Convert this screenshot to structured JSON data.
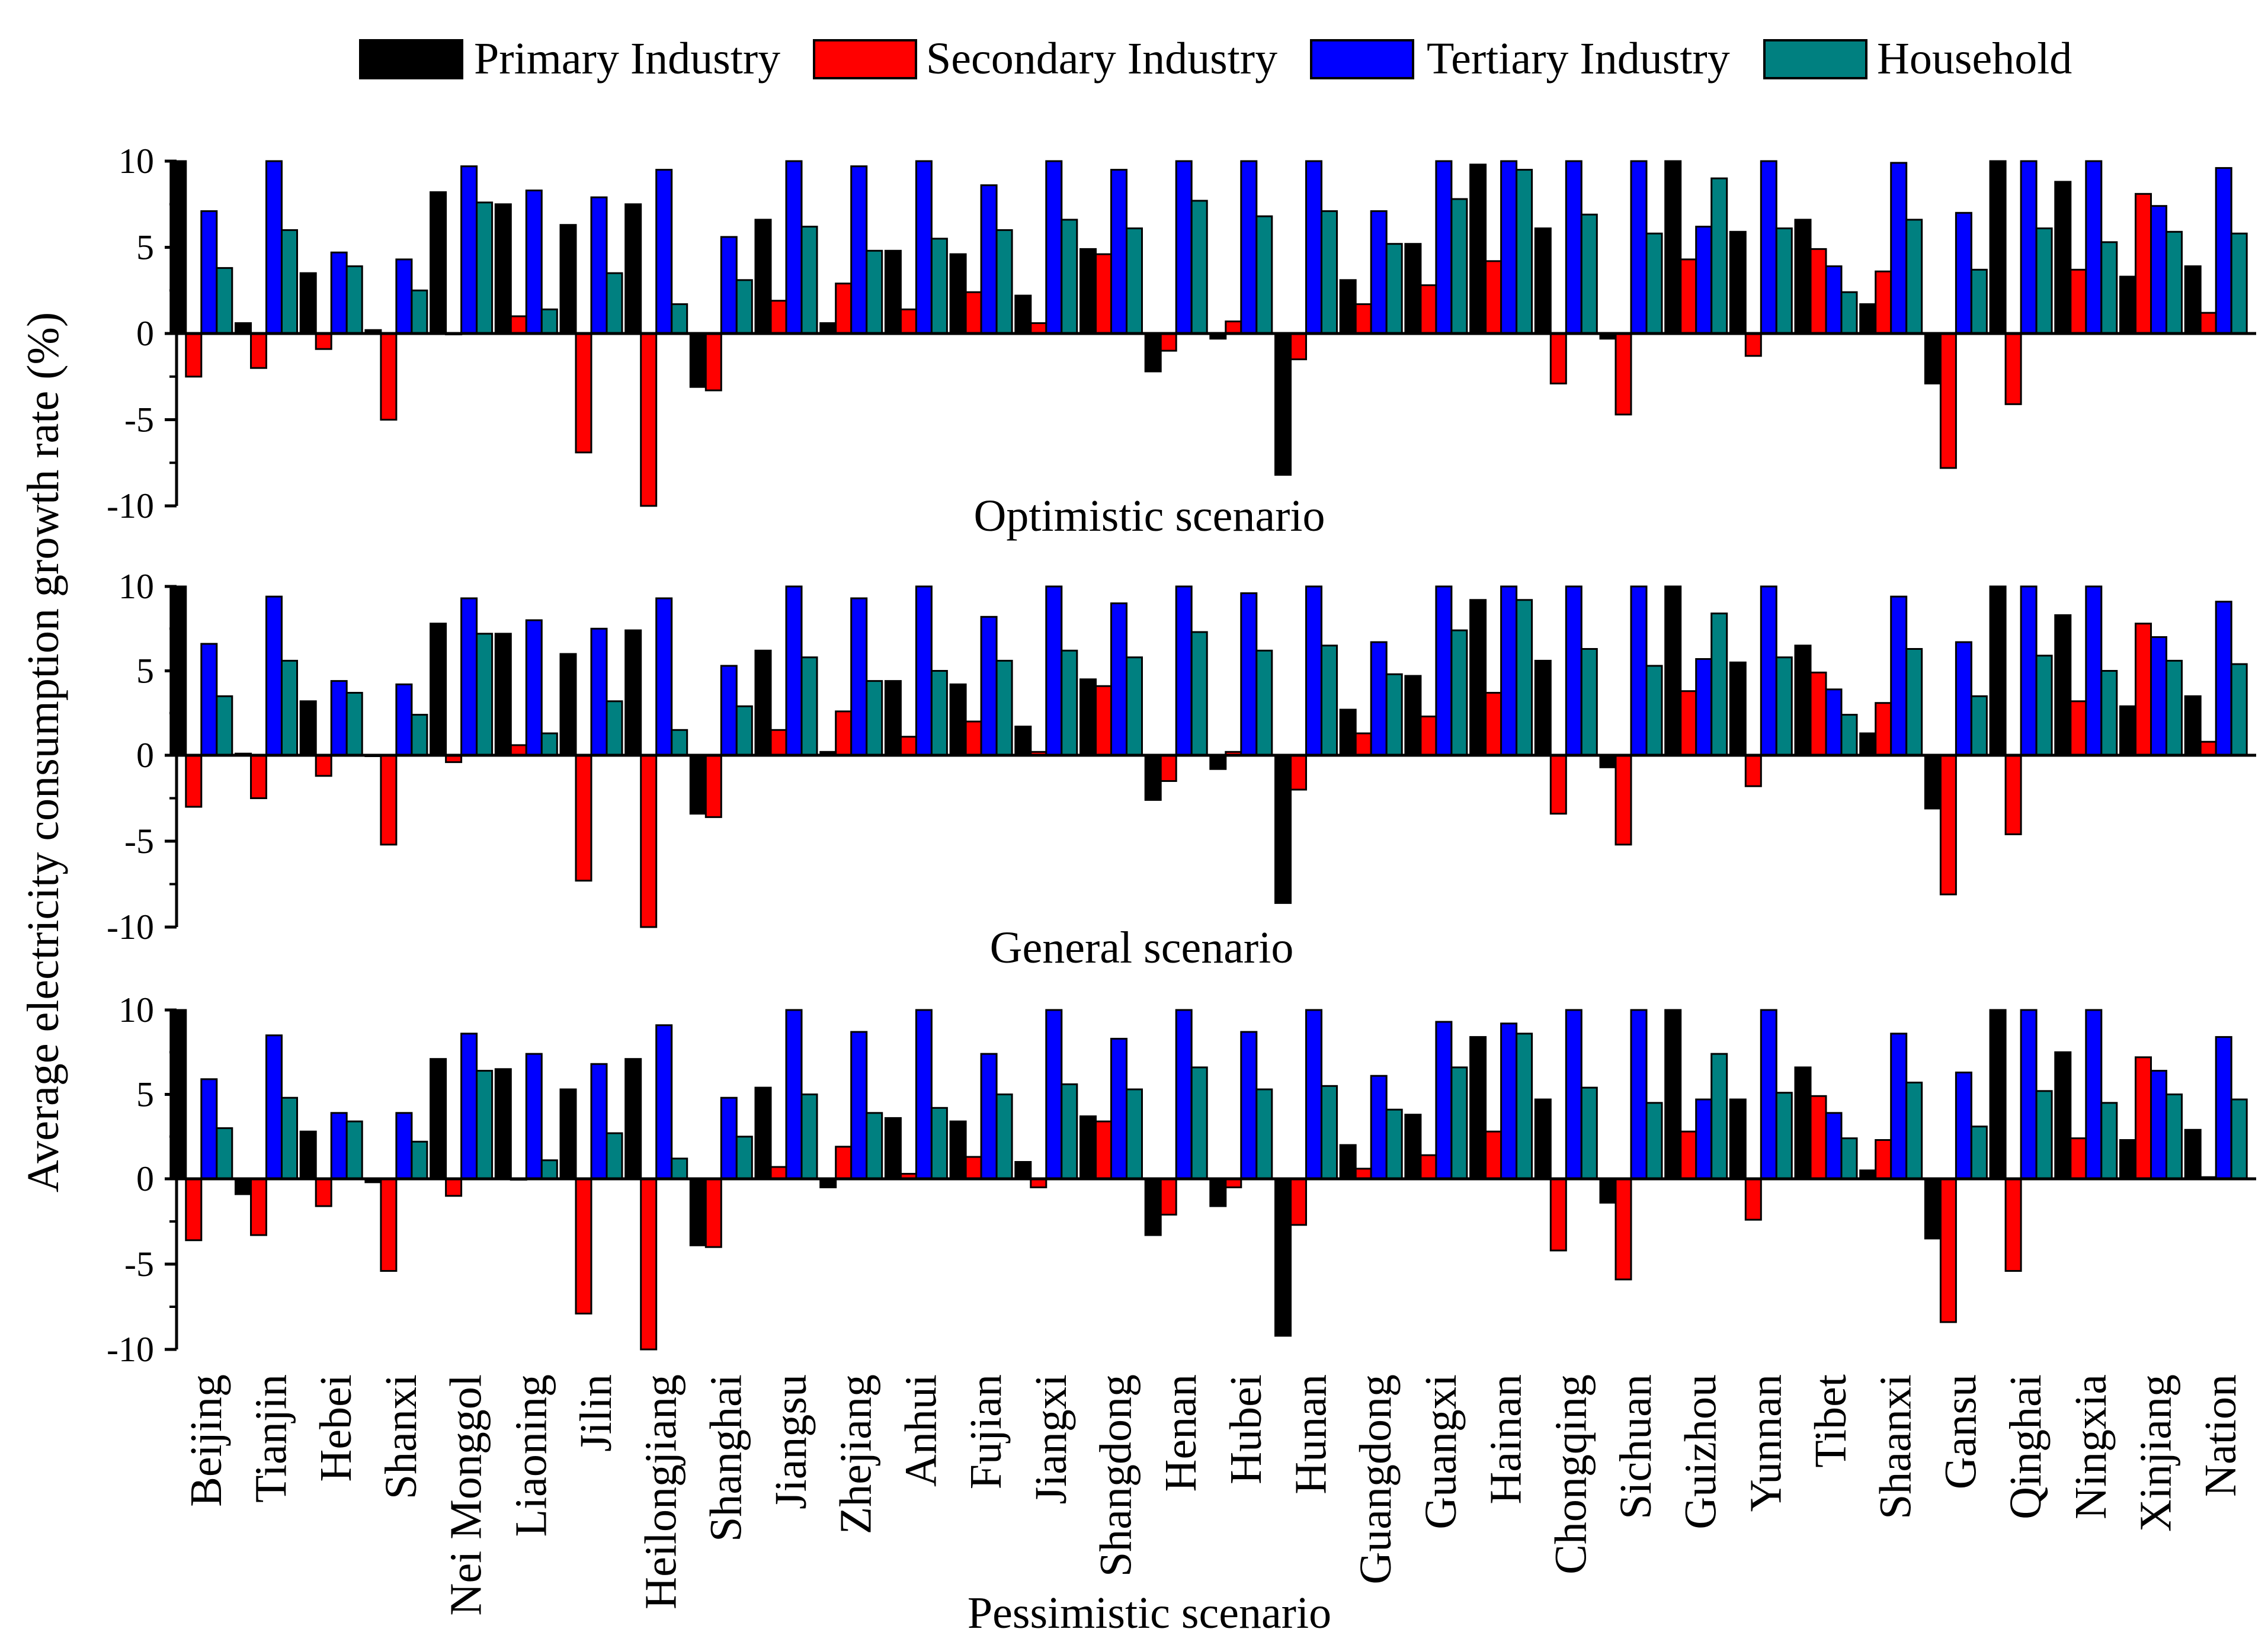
{
  "chart_data": {
    "type": "bar",
    "ylabel": "Average electricity consumption growth rate (%)",
    "ylim": [
      -10,
      10
    ],
    "yticks": [
      10,
      5,
      0,
      -5,
      -10
    ],
    "legend_position": "top",
    "categories": [
      "Beijing",
      "Tianjin",
      "Hebei",
      "Shanxi",
      "Nei Monggol",
      "Liaoning",
      "Jilin",
      "Heilongjiang",
      "Shanghai",
      "Jiangsu",
      "Zhejiang",
      "Anhui",
      "Fujian",
      "Jiangxi",
      "Shangdong",
      "Henan",
      "Hubei",
      "Hunan",
      "Guangdong",
      "Guangxi",
      "Hainan",
      "Chongqing",
      "Sichuan",
      "Guizhou",
      "Yunnan",
      "Tibet",
      "Shaanxi",
      "Gansu",
      "Qinghai",
      "Ningxia",
      "Xinjiang",
      "Nation"
    ],
    "series": [
      {
        "name": "Primary Industry",
        "color": "#000000"
      },
      {
        "name": "Secondary Industry",
        "color": "#ff0000"
      },
      {
        "name": "Tertiary Industry",
        "color": "#0000ff"
      },
      {
        "name": "Household",
        "color": "#008080"
      }
    ],
    "panels": [
      {
        "title": "Optimistic scenario",
        "values": [
          [
            10.5,
            -2.5,
            7.1,
            3.8
          ],
          [
            0.6,
            -2.0,
            10.0,
            6.0
          ],
          [
            3.5,
            -0.9,
            4.7,
            3.9
          ],
          [
            0.2,
            -5.0,
            4.3,
            2.5
          ],
          [
            8.2,
            0.0,
            9.7,
            7.6
          ],
          [
            7.5,
            1.0,
            8.3,
            1.4
          ],
          [
            6.3,
            -6.9,
            7.9,
            3.5
          ],
          [
            7.5,
            -10.5,
            9.5,
            1.7
          ],
          [
            -3.1,
            -3.3,
            5.6,
            3.1
          ],
          [
            6.6,
            1.9,
            10.5,
            6.2
          ],
          [
            0.6,
            2.9,
            9.7,
            4.8
          ],
          [
            4.8,
            1.4,
            10.5,
            5.5
          ],
          [
            4.6,
            2.4,
            8.6,
            6.0
          ],
          [
            2.2,
            0.6,
            10.5,
            6.6
          ],
          [
            4.9,
            4.6,
            9.5,
            6.1
          ],
          [
            -2.2,
            -1.0,
            10.5,
            7.7
          ],
          [
            -0.3,
            0.7,
            10.1,
            6.8
          ],
          [
            -8.2,
            -1.5,
            10.5,
            7.1
          ],
          [
            3.1,
            1.7,
            7.1,
            5.2
          ],
          [
            5.2,
            2.8,
            10.5,
            7.8
          ],
          [
            9.8,
            4.2,
            10.5,
            9.5
          ],
          [
            6.1,
            -2.9,
            10.5,
            6.9
          ],
          [
            -0.3,
            -4.7,
            10.5,
            5.8
          ],
          [
            10.5,
            4.3,
            6.2,
            9.0
          ],
          [
            5.9,
            -1.3,
            10.5,
            6.1
          ],
          [
            6.6,
            4.9,
            3.9,
            2.4
          ],
          [
            1.7,
            3.6,
            9.9,
            6.6
          ],
          [
            -2.9,
            -7.8,
            7.0,
            3.7
          ],
          [
            10.5,
            -4.1,
            10.5,
            6.1
          ],
          [
            8.8,
            3.7,
            10.5,
            5.3
          ],
          [
            3.3,
            8.1,
            7.4,
            5.9
          ],
          [
            3.9,
            1.2,
            9.6,
            5.8
          ]
        ]
      },
      {
        "title": "General scenario",
        "values": [
          [
            10.0,
            -3.0,
            6.6,
            3.5
          ],
          [
            0.1,
            -2.5,
            9.4,
            5.6
          ],
          [
            3.2,
            -1.2,
            4.4,
            3.7
          ],
          [
            0.0,
            -5.2,
            4.2,
            2.4
          ],
          [
            7.8,
            -0.4,
            9.3,
            7.2
          ],
          [
            7.2,
            0.6,
            8.0,
            1.3
          ],
          [
            6.0,
            -7.3,
            7.5,
            3.2
          ],
          [
            7.4,
            -10.5,
            9.3,
            1.5
          ],
          [
            -3.4,
            -3.6,
            5.3,
            2.9
          ],
          [
            6.2,
            1.5,
            10.0,
            5.8
          ],
          [
            0.2,
            2.6,
            9.3,
            4.4
          ],
          [
            4.4,
            1.1,
            10.0,
            5.0
          ],
          [
            4.2,
            2.0,
            8.2,
            5.6
          ],
          [
            1.7,
            0.2,
            10.0,
            6.2
          ],
          [
            4.5,
            4.1,
            9.0,
            5.8
          ],
          [
            -2.6,
            -1.5,
            10.0,
            7.3
          ],
          [
            -0.8,
            0.2,
            9.6,
            6.2
          ],
          [
            -8.6,
            -2.0,
            10.0,
            6.5
          ],
          [
            2.7,
            1.3,
            6.7,
            4.8
          ],
          [
            4.7,
            2.3,
            10.0,
            7.4
          ],
          [
            9.2,
            3.7,
            10.0,
            9.2
          ],
          [
            5.6,
            -3.4,
            10.0,
            6.3
          ],
          [
            -0.7,
            -5.2,
            10.0,
            5.3
          ],
          [
            10.0,
            3.8,
            5.7,
            8.4
          ],
          [
            5.5,
            -1.8,
            10.0,
            5.8
          ],
          [
            6.5,
            4.9,
            3.9,
            2.4
          ],
          [
            1.3,
            3.1,
            9.4,
            6.3
          ],
          [
            -3.1,
            -8.1,
            6.7,
            3.5
          ],
          [
            10.0,
            -4.6,
            10.0,
            5.9
          ],
          [
            8.3,
            3.2,
            10.0,
            5.0
          ],
          [
            2.9,
            7.8,
            7.0,
            5.6
          ],
          [
            3.5,
            0.8,
            9.1,
            5.4
          ]
        ]
      },
      {
        "title": "Pessimistic scenario",
        "values": [
          [
            10.0,
            -3.6,
            5.9,
            3.0
          ],
          [
            -0.9,
            -3.3,
            8.5,
            4.8
          ],
          [
            2.8,
            -1.6,
            3.9,
            3.4
          ],
          [
            -0.2,
            -5.4,
            3.9,
            2.2
          ],
          [
            7.1,
            -1.0,
            8.6,
            6.4
          ],
          [
            6.5,
            0.0,
            7.4,
            1.1
          ],
          [
            5.3,
            -7.9,
            6.8,
            2.7
          ],
          [
            7.1,
            -10.8,
            9.1,
            1.2
          ],
          [
            -3.9,
            -4.0,
            4.8,
            2.5
          ],
          [
            5.4,
            0.7,
            10.0,
            5.0
          ],
          [
            -0.5,
            1.9,
            8.7,
            3.9
          ],
          [
            3.6,
            0.3,
            10.0,
            4.2
          ],
          [
            3.4,
            1.3,
            7.4,
            5.0
          ],
          [
            1.0,
            -0.5,
            10.0,
            5.6
          ],
          [
            3.7,
            3.4,
            8.3,
            5.3
          ],
          [
            -3.3,
            -2.1,
            10.0,
            6.6
          ],
          [
            -1.6,
            -0.5,
            8.7,
            5.3
          ],
          [
            -9.2,
            -2.7,
            10.0,
            5.5
          ],
          [
            2.0,
            0.6,
            6.1,
            4.1
          ],
          [
            3.8,
            1.4,
            9.3,
            6.6
          ],
          [
            8.4,
            2.8,
            9.2,
            8.6
          ],
          [
            4.7,
            -4.2,
            10.0,
            5.4
          ],
          [
            -1.4,
            -5.9,
            10.0,
            4.5
          ],
          [
            10.0,
            2.8,
            4.7,
            7.4
          ],
          [
            4.7,
            -2.4,
            10.0,
            5.1
          ],
          [
            6.6,
            4.9,
            3.9,
            2.4
          ],
          [
            0.5,
            2.3,
            8.6,
            5.7
          ],
          [
            -3.5,
            -8.4,
            6.3,
            3.1
          ],
          [
            10.0,
            -5.4,
            10.0,
            5.2
          ],
          [
            7.5,
            2.4,
            10.0,
            4.5
          ],
          [
            2.3,
            7.2,
            6.4,
            5.0
          ],
          [
            2.9,
            0.1,
            8.4,
            4.7
          ]
        ]
      }
    ]
  }
}
